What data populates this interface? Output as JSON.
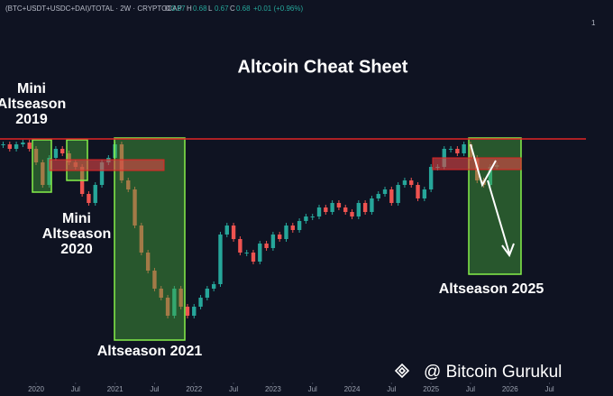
{
  "chart_data": {
    "type": "candlestick",
    "symbol": "(BTC+USDT+USDC+DAI)/TOTAL · 2W · CRYPTOCAP",
    "ohlc": [
      {
        "label": "O",
        "value": 0.67
      },
      {
        "label": "H",
        "value": 0.68
      },
      {
        "label": "L",
        "value": 0.67
      },
      {
        "label": "C",
        "value": 0.68
      }
    ],
    "change": "+0.01 (+0.96%)",
    "scale_label": "1",
    "title": "Altcoin Cheat Sheet",
    "annotations": [
      [
        "Mini",
        "Altseason",
        "2019"
      ],
      [
        "Mini",
        "Altseason",
        "2020"
      ],
      [
        "Altseason 2021"
      ],
      [
        "Altseason 2025"
      ]
    ],
    "watermark": "@ Bitcoin Gurukul",
    "x": [
      "2019-08",
      "2019-09",
      "2019-10",
      "2019-11",
      "2019-12",
      "2020-01",
      "2020-02",
      "2020-03",
      "2020-04",
      "2020-05",
      "2020-06",
      "2020-07",
      "2020-08",
      "2020-09",
      "2020-10",
      "2020-11",
      "2020-12",
      "2021-01",
      "2021-02",
      "2021-03",
      "2021-04",
      "2021-05",
      "2021-06",
      "2021-07",
      "2021-08",
      "2021-09",
      "2021-10",
      "2021-11",
      "2021-12",
      "2022-01",
      "2022-02",
      "2022-03",
      "2022-04",
      "2022-05",
      "2022-06",
      "2022-07",
      "2022-08",
      "2022-09",
      "2022-10",
      "2022-11",
      "2022-12",
      "2023-01",
      "2023-02",
      "2023-03",
      "2023-04",
      "2023-05",
      "2023-06",
      "2023-07",
      "2023-08",
      "2023-09",
      "2023-10",
      "2023-11",
      "2023-12",
      "2024-01",
      "2024-02",
      "2024-03",
      "2024-04",
      "2024-05",
      "2024-06",
      "2024-07",
      "2024-08",
      "2024-09",
      "2024-10",
      "2024-11",
      "2024-12",
      "2025-01",
      "2025-02",
      "2025-03",
      "2025-04",
      "2025-05",
      "2025-06",
      "2025-07",
      "2025-08",
      "2025-09",
      "2025-10",
      "2025-11"
    ],
    "series": [
      {
        "name": "close",
        "up_color": "#26a69a",
        "down_color": "#ef5350",
        "values": [
          0.7,
          0.695,
          0.7,
          0.702,
          0.695,
          0.68,
          0.655,
          0.685,
          0.695,
          0.69,
          0.68,
          0.675,
          0.645,
          0.635,
          0.655,
          0.68,
          0.685,
          0.7,
          0.66,
          0.65,
          0.61,
          0.58,
          0.56,
          0.54,
          0.53,
          0.51,
          0.54,
          0.52,
          0.51,
          0.52,
          0.53,
          0.54,
          0.545,
          0.6,
          0.61,
          0.595,
          0.58,
          0.58,
          0.57,
          0.59,
          0.585,
          0.6,
          0.595,
          0.61,
          0.605,
          0.615,
          0.62,
          0.62,
          0.63,
          0.625,
          0.635,
          0.63,
          0.625,
          0.62,
          0.635,
          0.625,
          0.64,
          0.645,
          0.65,
          0.635,
          0.655,
          0.66,
          0.655,
          0.64,
          0.65,
          0.675,
          0.675,
          0.695,
          0.695,
          0.69,
          0.7,
          0.685,
          0.66,
          0.655,
          0.675,
          0.677
        ]
      }
    ],
    "xlim": [
      "2019-08",
      "2027-03"
    ],
    "ylim": [
      0.44,
      0.86
    ],
    "xticks": [
      {
        "value": "2020-01",
        "label": "2020"
      },
      {
        "value": "2020-07",
        "label": "Jul"
      },
      {
        "value": "2021-01",
        "label": "2021"
      },
      {
        "value": "2021-07",
        "label": "Jul"
      },
      {
        "value": "2022-01",
        "label": "2022"
      },
      {
        "value": "2022-07",
        "label": "Jul"
      },
      {
        "value": "2023-01",
        "label": "2023"
      },
      {
        "value": "2023-07",
        "label": "Jul"
      },
      {
        "value": "2024-01",
        "label": "2024"
      },
      {
        "value": "2024-07",
        "label": "Jul"
      },
      {
        "value": "2025-01",
        "label": "2025"
      },
      {
        "value": "2025-07",
        "label": "Jul"
      },
      {
        "value": "2026-01",
        "label": "2026"
      },
      {
        "value": "2026-07",
        "label": "Jul"
      }
    ]
  }
}
